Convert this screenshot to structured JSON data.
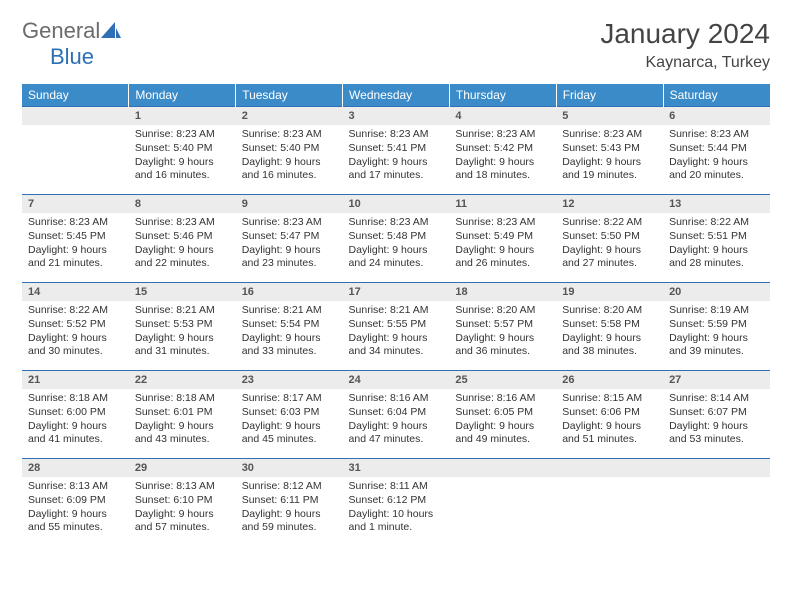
{
  "brand": {
    "name1": "General",
    "name2": "Blue",
    "color1": "#6b6b6b",
    "color2": "#2e6fb5"
  },
  "title": "January 2024",
  "location": "Kaynarca, Turkey",
  "header_bg": "#3b8bc9",
  "border_color": "#2e6fb5",
  "daynum_bg": "#ececec",
  "weekdays": [
    "Sunday",
    "Monday",
    "Tuesday",
    "Wednesday",
    "Thursday",
    "Friday",
    "Saturday"
  ],
  "weeks": [
    [
      null,
      {
        "n": "1",
        "sr": "8:23 AM",
        "ss": "5:40 PM",
        "dl": "9 hours and 16 minutes."
      },
      {
        "n": "2",
        "sr": "8:23 AM",
        "ss": "5:40 PM",
        "dl": "9 hours and 16 minutes."
      },
      {
        "n": "3",
        "sr": "8:23 AM",
        "ss": "5:41 PM",
        "dl": "9 hours and 17 minutes."
      },
      {
        "n": "4",
        "sr": "8:23 AM",
        "ss": "5:42 PM",
        "dl": "9 hours and 18 minutes."
      },
      {
        "n": "5",
        "sr": "8:23 AM",
        "ss": "5:43 PM",
        "dl": "9 hours and 19 minutes."
      },
      {
        "n": "6",
        "sr": "8:23 AM",
        "ss": "5:44 PM",
        "dl": "9 hours and 20 minutes."
      }
    ],
    [
      {
        "n": "7",
        "sr": "8:23 AM",
        "ss": "5:45 PM",
        "dl": "9 hours and 21 minutes."
      },
      {
        "n": "8",
        "sr": "8:23 AM",
        "ss": "5:46 PM",
        "dl": "9 hours and 22 minutes."
      },
      {
        "n": "9",
        "sr": "8:23 AM",
        "ss": "5:47 PM",
        "dl": "9 hours and 23 minutes."
      },
      {
        "n": "10",
        "sr": "8:23 AM",
        "ss": "5:48 PM",
        "dl": "9 hours and 24 minutes."
      },
      {
        "n": "11",
        "sr": "8:23 AM",
        "ss": "5:49 PM",
        "dl": "9 hours and 26 minutes."
      },
      {
        "n": "12",
        "sr": "8:22 AM",
        "ss": "5:50 PM",
        "dl": "9 hours and 27 minutes."
      },
      {
        "n": "13",
        "sr": "8:22 AM",
        "ss": "5:51 PM",
        "dl": "9 hours and 28 minutes."
      }
    ],
    [
      {
        "n": "14",
        "sr": "8:22 AM",
        "ss": "5:52 PM",
        "dl": "9 hours and 30 minutes."
      },
      {
        "n": "15",
        "sr": "8:21 AM",
        "ss": "5:53 PM",
        "dl": "9 hours and 31 minutes."
      },
      {
        "n": "16",
        "sr": "8:21 AM",
        "ss": "5:54 PM",
        "dl": "9 hours and 33 minutes."
      },
      {
        "n": "17",
        "sr": "8:21 AM",
        "ss": "5:55 PM",
        "dl": "9 hours and 34 minutes."
      },
      {
        "n": "18",
        "sr": "8:20 AM",
        "ss": "5:57 PM",
        "dl": "9 hours and 36 minutes."
      },
      {
        "n": "19",
        "sr": "8:20 AM",
        "ss": "5:58 PM",
        "dl": "9 hours and 38 minutes."
      },
      {
        "n": "20",
        "sr": "8:19 AM",
        "ss": "5:59 PM",
        "dl": "9 hours and 39 minutes."
      }
    ],
    [
      {
        "n": "21",
        "sr": "8:18 AM",
        "ss": "6:00 PM",
        "dl": "9 hours and 41 minutes."
      },
      {
        "n": "22",
        "sr": "8:18 AM",
        "ss": "6:01 PM",
        "dl": "9 hours and 43 minutes."
      },
      {
        "n": "23",
        "sr": "8:17 AM",
        "ss": "6:03 PM",
        "dl": "9 hours and 45 minutes."
      },
      {
        "n": "24",
        "sr": "8:16 AM",
        "ss": "6:04 PM",
        "dl": "9 hours and 47 minutes."
      },
      {
        "n": "25",
        "sr": "8:16 AM",
        "ss": "6:05 PM",
        "dl": "9 hours and 49 minutes."
      },
      {
        "n": "26",
        "sr": "8:15 AM",
        "ss": "6:06 PM",
        "dl": "9 hours and 51 minutes."
      },
      {
        "n": "27",
        "sr": "8:14 AM",
        "ss": "6:07 PM",
        "dl": "9 hours and 53 minutes."
      }
    ],
    [
      {
        "n": "28",
        "sr": "8:13 AM",
        "ss": "6:09 PM",
        "dl": "9 hours and 55 minutes."
      },
      {
        "n": "29",
        "sr": "8:13 AM",
        "ss": "6:10 PM",
        "dl": "9 hours and 57 minutes."
      },
      {
        "n": "30",
        "sr": "8:12 AM",
        "ss": "6:11 PM",
        "dl": "9 hours and 59 minutes."
      },
      {
        "n": "31",
        "sr": "8:11 AM",
        "ss": "6:12 PM",
        "dl": "10 hours and 1 minute."
      },
      null,
      null,
      null
    ]
  ],
  "labels": {
    "sunrise": "Sunrise:",
    "sunset": "Sunset:",
    "daylight": "Daylight:"
  }
}
